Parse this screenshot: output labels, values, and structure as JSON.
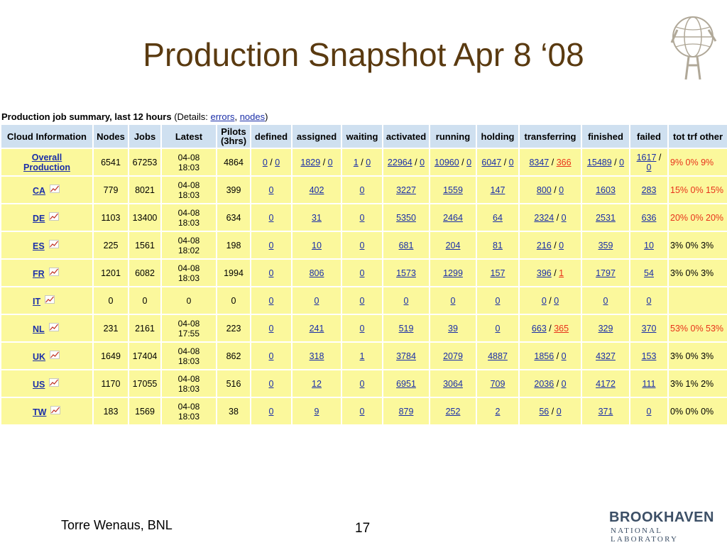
{
  "slide": {
    "title": "Production Snapshot Apr 8 ‘08",
    "author": "Torre Wenaus, BNL",
    "page": "17"
  },
  "logos": {
    "bnl_name": "BROOKHAVEN",
    "bnl_sub": "NATIONAL LABORATORY"
  },
  "summary": {
    "title": "Production job summary, last 12 hours",
    "details_prefix": " (Details: ",
    "link_errors": "errors",
    "sep": ", ",
    "link_nodes": "nodes",
    "details_suffix": ")"
  },
  "columns": [
    "Cloud Information",
    "Nodes",
    "Jobs",
    "Latest",
    "Pilots (3hrs)",
    "defined",
    "assigned",
    "waiting",
    "activated",
    "running",
    "holding",
    "transferring",
    "finished",
    "failed",
    "tot trf other"
  ],
  "rows": [
    {
      "cloud": "Overall Production",
      "nodes": "6541",
      "jobs": "67253",
      "latest_date": "04-08",
      "latest_time": "18:03",
      "pilots": "4864",
      "defined_a": "0",
      "defined_b": "0",
      "assigned_a": "1829",
      "assigned_b": "0",
      "waiting_a": "1",
      "waiting_b": "0",
      "activated_a": "22964",
      "activated_b": "0",
      "running_a": "10960",
      "running_b": "0",
      "holding_a": "6047",
      "holding_b": "0",
      "transferring_a": "8347",
      "transferring_b": "366",
      "finished_a": "15489",
      "finished_b": "0",
      "failed_a": "1617",
      "failed_b": "0",
      "pct": "9% 0% 9%"
    },
    {
      "cloud": "CA",
      "nodes": "779",
      "jobs": "8021",
      "latest_date": "04-08",
      "latest_time": "18:03",
      "pilots": "399",
      "defined": "0",
      "assigned": "402",
      "waiting": "0",
      "activated": "3227",
      "running": "1559",
      "holding": "147",
      "transferring_a": "800",
      "transferring_b": "0",
      "finished": "1603",
      "failed": "283",
      "pct": "15% 0% 15%"
    },
    {
      "cloud": "DE",
      "nodes": "1103",
      "jobs": "13400",
      "latest_date": "04-08",
      "latest_time": "18:03",
      "pilots": "634",
      "defined": "0",
      "assigned": "31",
      "waiting": "0",
      "activated": "5350",
      "running": "2464",
      "holding": "64",
      "transferring_a": "2324",
      "transferring_b": "0",
      "finished": "2531",
      "failed": "636",
      "pct": "20% 0% 20%"
    },
    {
      "cloud": "ES",
      "nodes": "225",
      "jobs": "1561",
      "latest_date": "04-08",
      "latest_time": "18:02",
      "pilots": "198",
      "defined": "0",
      "assigned": "10",
      "waiting": "0",
      "activated": "681",
      "running": "204",
      "holding": "81",
      "transferring_a": "216",
      "transferring_b": "0",
      "finished": "359",
      "failed": "10",
      "pct": "3% 0% 3%"
    },
    {
      "cloud": "FR",
      "nodes": "1201",
      "jobs": "6082",
      "latest_date": "04-08",
      "latest_time": "18:03",
      "pilots": "1994",
      "defined": "0",
      "assigned": "806",
      "waiting": "0",
      "activated": "1573",
      "running": "1299",
      "holding": "157",
      "transferring_a": "396",
      "transferring_b": "1",
      "finished": "1797",
      "failed": "54",
      "pct": "3% 0% 3%"
    },
    {
      "cloud": "IT",
      "nodes": "0",
      "jobs": "0",
      "latest": "0",
      "pilots": "0",
      "defined": "0",
      "assigned": "0",
      "waiting": "0",
      "activated": "0",
      "running": "0",
      "holding": "0",
      "transferring_a": "0",
      "transferring_b": "0",
      "finished": "0",
      "failed": "0",
      "pct": ""
    },
    {
      "cloud": "NL",
      "nodes": "231",
      "jobs": "2161",
      "latest_date": "04-08",
      "latest_time": "17:55",
      "pilots": "223",
      "defined": "0",
      "assigned": "241",
      "waiting": "0",
      "activated": "519",
      "running": "39",
      "holding": "0",
      "transferring_a": "663",
      "transferring_b": "365",
      "finished": "329",
      "failed": "370",
      "pct": "53% 0% 53%"
    },
    {
      "cloud": "UK",
      "nodes": "1649",
      "jobs": "17404",
      "latest_date": "04-08",
      "latest_time": "18:03",
      "pilots": "862",
      "defined": "0",
      "assigned": "318",
      "waiting": "1",
      "activated": "3784",
      "running": "2079",
      "holding": "4887",
      "transferring_a": "1856",
      "transferring_b": "0",
      "finished": "4327",
      "failed": "153",
      "pct": "3% 0% 3%"
    },
    {
      "cloud": "US",
      "nodes": "1170",
      "jobs": "17055",
      "latest_date": "04-08",
      "latest_time": "18:03",
      "pilots": "516",
      "defined": "0",
      "assigned": "12",
      "waiting": "0",
      "activated": "6951",
      "running": "3064",
      "holding": "709",
      "transferring_a": "2036",
      "transferring_b": "0",
      "finished": "4172",
      "failed": "111",
      "pct": "3% 1% 2%"
    },
    {
      "cloud": "TW",
      "nodes": "183",
      "jobs": "1569",
      "latest_date": "04-08",
      "latest_time": "18:03",
      "pilots": "38",
      "defined": "0",
      "assigned": "9",
      "waiting": "0",
      "activated": "879",
      "running": "252",
      "holding": "2",
      "transferring_a": "56",
      "transferring_b": "0",
      "finished": "371",
      "failed": "0",
      "pct": "0% 0% 0%"
    }
  ],
  "colors": {
    "header_bg": "#cfe0f0",
    "cell_bg": "#fbf89c",
    "link": "#1a2ea8",
    "alert": "#e8321a",
    "title": "#5a3a10"
  }
}
